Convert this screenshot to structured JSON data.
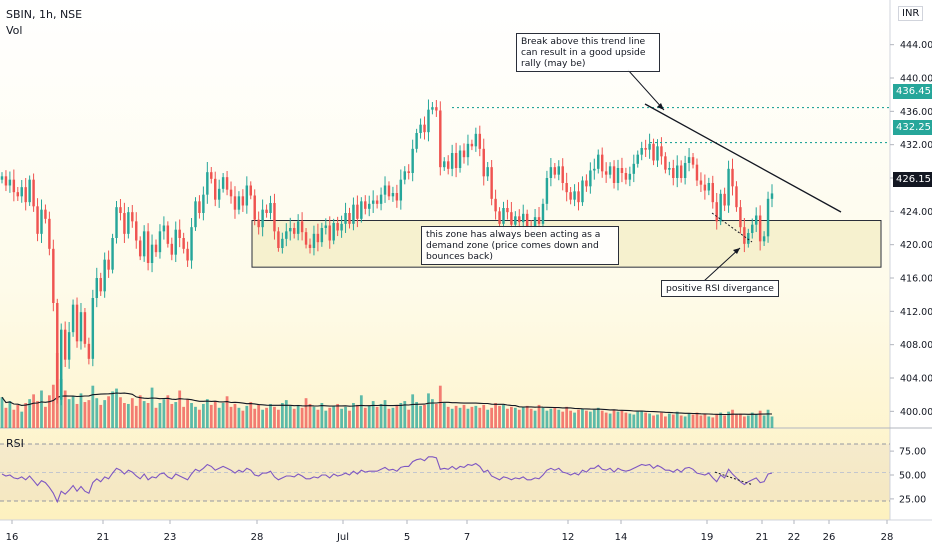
{
  "header": {
    "symbol_line": "SBIN, 1h, NSE",
    "volume_label": "Vol",
    "rsi_label": "RSI",
    "currency": "INR"
  },
  "colors": {
    "up": "#26a69a",
    "down": "#ef5350",
    "rsi_line": "#7e57c2",
    "resistance_line": "#26a69a",
    "last_price_tag": "#131722",
    "background_top": "#ffffff",
    "background_bottom": "#fdf3c4"
  },
  "price_axis": {
    "ticks": [
      "444.00",
      "440.00",
      "436.00",
      "432.00",
      "428.00",
      "424.00",
      "420.00",
      "416.00",
      "412.00",
      "408.00",
      "404.00",
      "400.00"
    ],
    "tags": [
      {
        "label": "436.45",
        "kind": "resistance"
      },
      {
        "label": "432.25",
        "kind": "resistance"
      },
      {
        "label": "426.15",
        "kind": "last"
      }
    ]
  },
  "rsi_axis": {
    "ticks": [
      "75.00",
      "50.00",
      "25.00"
    ]
  },
  "time_axis": {
    "ticks": [
      "16",
      "21",
      "23",
      "28",
      "Jul",
      "5",
      "7",
      "12",
      "14",
      "19",
      "21",
      "22",
      "26",
      "28"
    ]
  },
  "annotations": {
    "trendline_note": "Break above this trend line can result in a good upside rally (may be)",
    "zone_note": "this zone has always been acting as a demand zone (price comes down and bounces back)",
    "divergence_note": "positive RSI divergance"
  },
  "chart_data": {
    "type": "candlestick",
    "symbol": "SBIN",
    "interval": "1h",
    "exchange": "NSE",
    "ylim": [
      398,
      446
    ],
    "resistance_levels": [
      436.45,
      432.25
    ],
    "last_price": 426.15,
    "demand_zone": [
      417.3,
      422.9
    ],
    "closes": [
      428.2,
      427.1,
      427.8,
      426.3,
      425.8,
      426.9,
      425.1,
      427.8,
      424.6,
      421.3,
      424.2,
      423.1,
      419.5,
      413.0,
      401.4,
      409.8,
      406.2,
      409.5,
      412.8,
      408.4,
      411.9,
      408.1,
      406.3,
      413.6,
      416.0,
      414.4,
      418.2,
      417.0,
      420.8,
      424.5,
      423.8,
      421.3,
      423.9,
      422.8,
      420.5,
      418.6,
      421.6,
      417.8,
      420.0,
      419.1,
      421.6,
      422.3,
      420.1,
      418.8,
      421.8,
      420.8,
      419.5,
      418.1,
      422.1,
      425.2,
      423.8,
      426.0,
      428.7,
      427.9,
      425.4,
      426.7,
      428.1,
      426.6,
      425.8,
      424.2,
      425.8,
      424.7,
      427.1,
      425.9,
      423.0,
      422.1,
      424.2,
      423.8,
      425.0,
      421.6,
      419.6,
      420.7,
      421.6,
      422.0,
      421.3,
      422.8,
      421.5,
      420.0,
      419.6,
      421.3,
      420.3,
      422.0,
      422.3,
      420.5,
      422.6,
      421.7,
      422.5,
      423.8,
      422.5,
      424.8,
      423.1,
      425.2,
      424.3,
      424.9,
      425.3,
      424.9,
      426.0,
      427.1,
      425.8,
      426.2,
      425.3,
      427.8,
      428.8,
      428.6,
      431.5,
      433.4,
      434.4,
      433.5,
      436.2,
      436.5,
      436.1,
      429.3,
      430.0,
      429.1,
      431.0,
      429.2,
      431.3,
      430.5,
      432.1,
      431.8,
      433.3,
      431.5,
      428.2,
      429.3,
      425.5,
      424.0,
      422.5,
      424.4,
      423.9,
      422.4,
      423.4,
      422.7,
      423.7,
      422.2,
      421.9,
      423.3,
      422.5,
      424.9,
      428.0,
      429.3,
      428.4,
      429.4,
      427.4,
      426.3,
      425.4,
      426.4,
      425.1,
      427.7,
      427.0,
      428.9,
      429.1,
      430.8,
      428.8,
      428.4,
      429.4,
      427.4,
      429.2,
      428.6,
      427.8,
      428.5,
      429.7,
      430.8,
      431.6,
      431.4,
      432.1,
      430.1,
      431.8,
      430.6,
      429.0,
      429.2,
      428.0,
      429.5,
      428.0,
      429.8,
      430.5,
      429.6,
      427.7,
      427.2,
      426.5,
      427.4,
      425.1,
      422.8,
      426.1,
      424.7,
      429.1,
      427.0,
      424.5,
      422.1,
      420.1,
      421.4,
      422.4,
      423.5,
      420.4,
      421.0,
      425.5,
      426.15
    ],
    "rsi": [
      51,
      49,
      50,
      47,
      46,
      48,
      45,
      49,
      44,
      39,
      44,
      42,
      37,
      31,
      22,
      33,
      30,
      34,
      39,
      33,
      38,
      33,
      31,
      42,
      46,
      43,
      48,
      46,
      52,
      57,
      55,
      51,
      55,
      53,
      49,
      46,
      51,
      45,
      48,
      47,
      51,
      52,
      48,
      46,
      51,
      49,
      47,
      45,
      51,
      56,
      54,
      57,
      61,
      59,
      55,
      57,
      59,
      57,
      55,
      52,
      55,
      53,
      57,
      55,
      50,
      49,
      52,
      52,
      54,
      48,
      45,
      47,
      49,
      49,
      48,
      51,
      49,
      46,
      46,
      48,
      47,
      50,
      50,
      47,
      51,
      49,
      50,
      52,
      50,
      54,
      51,
      55,
      53,
      54,
      54,
      54,
      56,
      58,
      55,
      56,
      54,
      58,
      59,
      59,
      64,
      66,
      67,
      65,
      69,
      69,
      68,
      56,
      57,
      56,
      59,
      56,
      59,
      58,
      61,
      60,
      62,
      59,
      53,
      55,
      49,
      47,
      45,
      48,
      47,
      45,
      47,
      46,
      48,
      45,
      45,
      47,
      46,
      50,
      55,
      57,
      55,
      57,
      53,
      52,
      50,
      52,
      50,
      55,
      53,
      57,
      57,
      60,
      56,
      55,
      57,
      53,
      57,
      55,
      54,
      55,
      57,
      59,
      61,
      60,
      61,
      57,
      60,
      58,
      55,
      55,
      53,
      56,
      53,
      57,
      58,
      56,
      52,
      51,
      50,
      52,
      47,
      43,
      50,
      47,
      56,
      51,
      47,
      43,
      40,
      43,
      45,
      47,
      42,
      43,
      51,
      52
    ],
    "volume": [
      3.2,
      2.1,
      2.8,
      1.9,
      2.4,
      1.7,
      2.6,
      3.0,
      3.5,
      2.8,
      3.9,
      2.2,
      3.4,
      4.5,
      7.8,
      5.1,
      3.9,
      3.0,
      3.3,
      2.5,
      3.6,
      2.7,
      2.9,
      4.4,
      3.1,
      2.4,
      2.9,
      3.3,
      3.8,
      4.1,
      3.2,
      2.6,
      2.5,
      3.1,
      2.3,
      3.4,
      2.8,
      2.6,
      4.2,
      2.1,
      2.6,
      3.0,
      3.4,
      2.5,
      2.7,
      3.9,
      2.2,
      3.0,
      2.6,
      2.2,
      1.9,
      2.5,
      3.0,
      2.4,
      2.8,
      2.1,
      2.6,
      3.3,
      2.2,
      2.5,
      2.1,
      1.8,
      2.3,
      2.7,
      2.0,
      2.4,
      1.9,
      2.1,
      2.5,
      2.2,
      1.9,
      2.6,
      2.9,
      2.3,
      2.0,
      2.4,
      2.1,
      3.1,
      2.5,
      2.2,
      1.9,
      2.6,
      1.8,
      2.1,
      2.3,
      2.5,
      2.0,
      2.2,
      1.8,
      2.6,
      2.4,
      3.4,
      2.1,
      2.3,
      2.8,
      2.2,
      2.5,
      2.9,
      2.0,
      2.1,
      2.4,
      2.6,
      2.8,
      1.9,
      3.5,
      2.7,
      2.3,
      2.4,
      3.6,
      3.0,
      2.5,
      4.4,
      2.6,
      2.2,
      2.0,
      2.3,
      2.1,
      2.4,
      2.0,
      2.2,
      2.3,
      2.1,
      2.4,
      1.9,
      2.1,
      2.6,
      2.3,
      2.4,
      2.0,
      2.2,
      2.1,
      1.9,
      2.2,
      2.3,
      2.0,
      1.8,
      2.4,
      2.1,
      1.8,
      2.0,
      2.1,
      1.9,
      1.7,
      2.2,
      1.8,
      1.6,
      1.9,
      2.0,
      1.8,
      1.7,
      1.9,
      2.1,
      1.8,
      1.6,
      1.5,
      1.9,
      1.7,
      1.8,
      1.6,
      1.5,
      1.4,
      1.7,
      1.8,
      1.6,
      1.5,
      1.3,
      1.4,
      1.6,
      1.2,
      1.5,
      1.4,
      1.7,
      1.3,
      1.2,
      1.5,
      1.4,
      1.6,
      1.3,
      1.5,
      1.2,
      1.1,
      1.4,
      1.6,
      1.3,
      1.7,
      1.9,
      1.4,
      1.5,
      1.2,
      1.3,
      1.6,
      1.4,
      1.8,
      1.3,
      1.9,
      1.2
    ]
  }
}
